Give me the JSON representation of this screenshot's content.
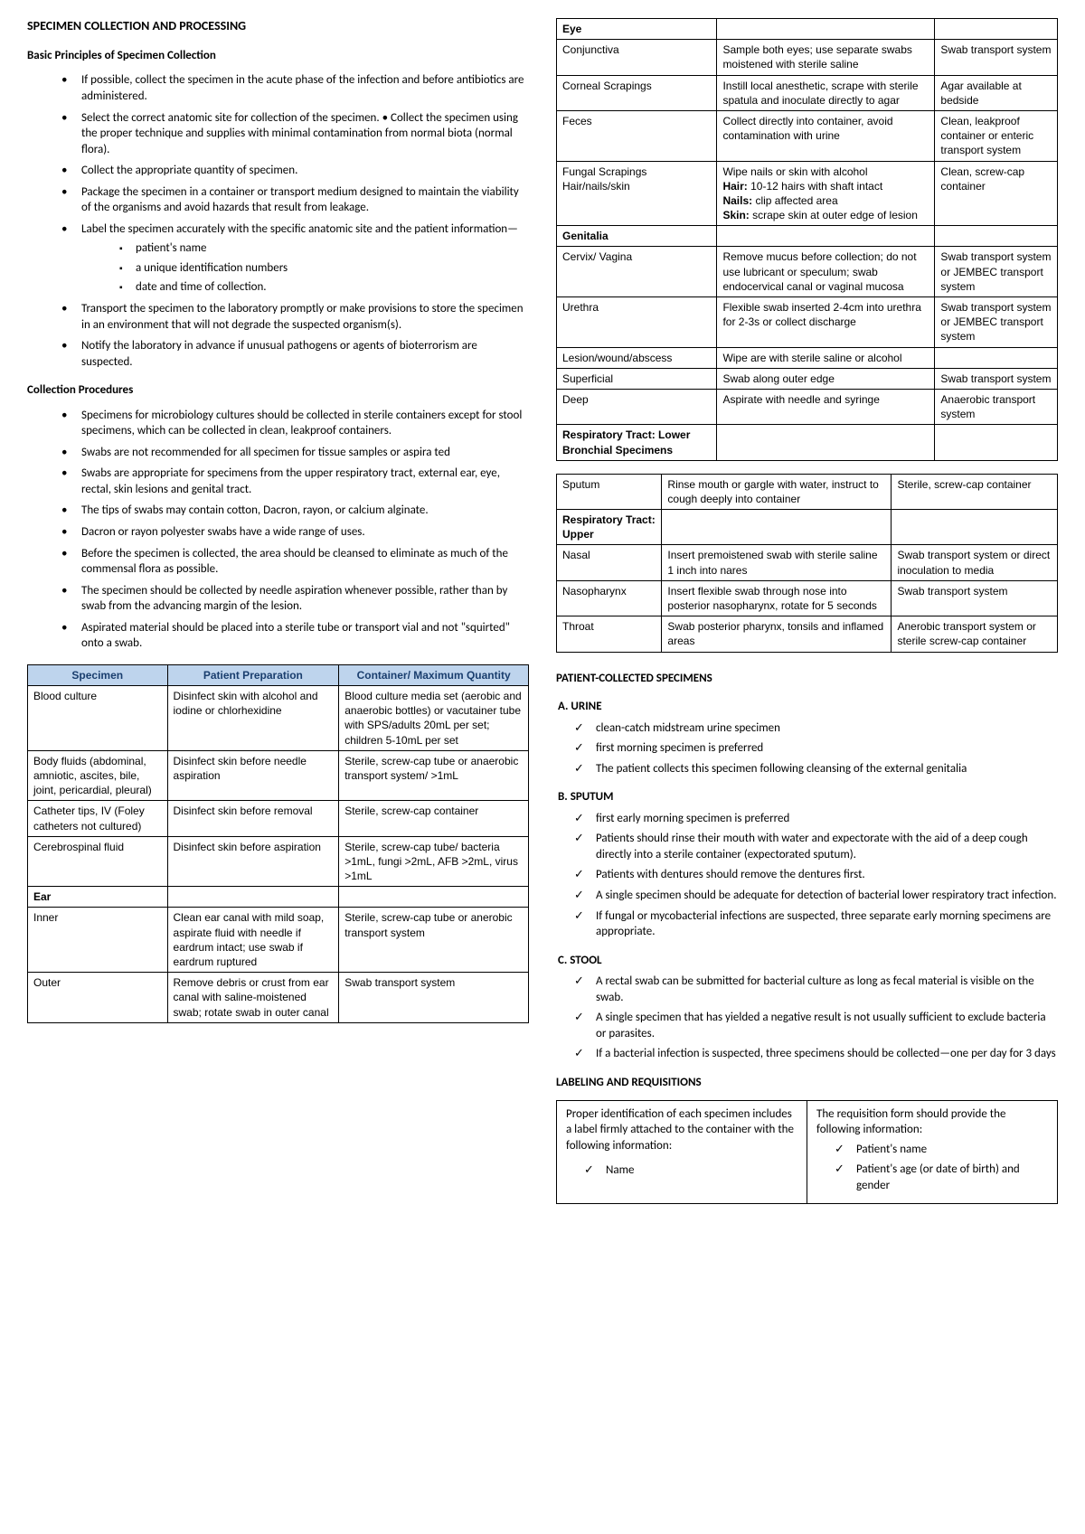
{
  "title": "SPECIMEN COLLECTION AND PROCESSING",
  "basic_principles": {
    "heading": "Basic Principles of Specimen Collection",
    "items": [
      "If possible, collect the specimen in the acute phase of the infection and before antibiotics are administered.",
      "Select the correct anatomic site for collection of the specimen. • Collect the specimen using the proper technique and supplies with minimal contamination from normal biota (normal flora).",
      "Collect the appropriate quantity of specimen.",
      "Package the specimen in a container or transport medium designed to maintain the viability of the organisms and avoid hazards that result from leakage.",
      "Label the specimen accurately with the specific anatomic site and the patient information—",
      "Transport the specimen to the laboratory promptly or make provisions to store the specimen in an environment that will not degrade the suspected organism(s).",
      "Notify the laboratory in advance if unusual pathogens or agents of bioterrorism are suspected."
    ],
    "sub_items": [
      "patient's name",
      "a unique identification numbers",
      "date and time of collection."
    ]
  },
  "collection_procedures": {
    "heading": "Collection Procedures",
    "items": [
      "Specimens for microbiology cultures should be collected in sterile containers except for stool specimens, which can be collected in clean, leakproof containers.",
      "Swabs are not recommended for all specimen for tissue samples or aspira ted",
      "Swabs are appropriate for specimens from the upper respiratory tract, external ear, eye, rectal, skin lesions and genital tract.",
      "The tips of swabs may contain cotton, Dacron, rayon, or calcium alginate.",
      "Dacron or rayon polyester swabs have a wide range of uses.",
      "Before the specimen is collected, the area should be cleansed to eliminate as much of the commensal flora as possible.",
      "The specimen should be collected by needle aspiration whenever possible, rather than by swab from the advancing margin of the lesion.",
      "Aspirated material should be placed into a sterile tube or transport vial and not \"squirted\" onto a swab."
    ]
  },
  "table1": {
    "headers": [
      "Specimen",
      "Patient Preparation",
      "Container/ Maximum Quantity"
    ],
    "rows": [
      {
        "type": "data",
        "c": [
          "Blood culture",
          "Disinfect skin with alcohol and iodine or chlorhexidine",
          "Blood culture media set (aerobic and anaerobic bottles) or vacutainer tube with SPS/adults 20mL per set; children 5-10mL per set"
        ]
      },
      {
        "type": "data",
        "c": [
          "Body fluids (abdominal, amniotic, ascites, bile, joint, pericardial, pleural)",
          "Disinfect skin before needle aspiration",
          "Sterile, screw-cap tube or anaerobic transport system/ >1mL"
        ]
      },
      {
        "type": "data",
        "c": [
          "Catheter tips, IV (Foley catheters not cultured)",
          "Disinfect skin before removal",
          "Sterile, screw-cap container"
        ]
      },
      {
        "type": "data",
        "c": [
          "Cerebrospinal fluid",
          "Disinfect skin before aspiration",
          "Sterile, screw-cap tube/ bacteria >1mL, fungi >2mL, AFB >2mL, virus >1mL"
        ]
      },
      {
        "type": "section",
        "c": [
          "Ear",
          "",
          ""
        ]
      },
      {
        "type": "data",
        "c": [
          "Inner",
          "Clean ear canal with mild soap, aspirate fluid with needle if eardrum intact; use swab if eardrum ruptured",
          "Sterile, screw-cap tube or anerobic transport system"
        ],
        "indent": true
      },
      {
        "type": "data",
        "c": [
          "Outer",
          "Remove debris or crust from ear canal with saline-moistened swab; rotate swab in outer canal",
          "Swab transport system"
        ],
        "indent": true
      }
    ]
  },
  "table2": {
    "rows": [
      {
        "type": "section",
        "c": [
          "Eye",
          "",
          ""
        ]
      },
      {
        "type": "data",
        "c": [
          "Conjunctiva",
          "Sample both eyes; use separate swabs moistened with sterile saline",
          "Swab transport system"
        ],
        "indent": true
      },
      {
        "type": "data",
        "c": [
          "Corneal Scrapings",
          "Instill local anesthetic, scrape with sterile spatula and inoculate directly to agar",
          "Agar available at bedside"
        ],
        "indent": true
      },
      {
        "type": "data",
        "c": [
          "Feces",
          "Collect directly into container, avoid contamination with urine",
          "Clean, leakproof container or enteric transport system"
        ]
      },
      {
        "type": "data_html",
        "c": [
          "Fungal Scrapings Hair/nails/skin",
          "Wipe nails or skin with alcohol<br><b>Hair:</b> 10-12 hairs with shaft intact<br><b>Nails:</b> clip affected area<br><b>Skin:</b> scrape skin at outer edge of lesion",
          "Clean, screw-cap container"
        ],
        "indent": true
      },
      {
        "type": "section",
        "c": [
          "Genitalia",
          "",
          ""
        ]
      },
      {
        "type": "data",
        "c": [
          "Cervix/ Vagina",
          "Remove mucus before collection; do not use lubricant or speculum; swab endocervical canal or vaginal mucosa",
          "Swab transport system or JEMBEC transport system"
        ],
        "indent": true
      },
      {
        "type": "data",
        "c": [
          "Urethra",
          "Flexible swab inserted 2-4cm into urethra for 2-3s or collect discharge",
          "Swab transport system or JEMBEC transport system"
        ],
        "indent": true
      },
      {
        "type": "data",
        "c": [
          "Lesion/wound/abscess",
          "Wipe are with sterile saline or alcohol",
          ""
        ]
      },
      {
        "type": "data",
        "c": [
          "Superficial",
          "Swab along outer edge",
          "Swab transport system"
        ],
        "indent": true
      },
      {
        "type": "data",
        "c": [
          "Deep",
          "Aspirate with needle and syringe",
          "Anaerobic transport system"
        ],
        "indent": true
      },
      {
        "type": "section",
        "c": [
          "Respiratory Tract: Lower Bronchial Specimens",
          "",
          ""
        ]
      }
    ]
  },
  "table3": {
    "rows": [
      {
        "type": "data",
        "c": [
          "Sputum",
          "Rinse mouth or gargle with water, instruct to cough deeply into container",
          "Sterile, screw-cap container"
        ],
        "indent": true
      },
      {
        "type": "section",
        "c": [
          "Respiratory Tract: Upper",
          "",
          ""
        ]
      },
      {
        "type": "data",
        "c": [
          "Nasal",
          "Insert premoistened swab with sterile saline 1 inch into nares",
          "Swab transport system or direct inoculation to media"
        ],
        "indent": true
      },
      {
        "type": "data",
        "c": [
          "Nasopharynx",
          "Insert flexible swab through nose into posterior nasopharynx, rotate for 5 seconds",
          "Swab transport system"
        ],
        "indent": true
      },
      {
        "type": "data",
        "c": [
          "Throat",
          "Swab posterior pharynx, tonsils and inflamed areas",
          "Anerobic transport system or sterile screw-cap container"
        ],
        "indent": true
      }
    ]
  },
  "patient_collected": {
    "heading": "PATIENT-COLLECTED SPECIMENS",
    "urine": {
      "label": "A.    URINE",
      "items": [
        "clean-catch midstream urine specimen",
        "first morning specimen is preferred",
        "The patient collects this specimen following cleansing of the external genitalia"
      ]
    },
    "sputum": {
      "label": "B.    SPUTUM",
      "items": [
        "first early morning specimen is preferred",
        "Patients should rinse their mouth with water and expectorate with the aid of a deep cough directly into a sterile container (expectorated sputum).",
        "Patients with dentures should remove the dentures first.",
        "A single specimen should be adequate for detection of bacterial lower respiratory tract infection.",
        "If fungal or mycobacterial infections are suspected, three separate early morning specimens are appropriate."
      ]
    },
    "stool": {
      "label": "C.    STOOL",
      "items": [
        "A rectal swab can be submitted for bacterial culture as long as fecal material is visible on the swab.",
        "A single specimen that has yielded a negative result is not usually sufficient to exclude bacteria or parasites.",
        "If a bacterial infection is suspected, three specimens should be collected—one per day for 3 days"
      ]
    }
  },
  "labeling": {
    "heading": "LABELING AND REQUISITIONS",
    "left_text": "Proper identification of each specimen includes a label firmly attached to the container with the following information:",
    "left_items": [
      "Name"
    ],
    "right_text": "The requisition form should provide the following information:",
    "right_items": [
      "Patient's name",
      "Patient's age (or date of birth) and gender"
    ]
  },
  "colors": {
    "table_header_bg": "#bed4ed",
    "table_header_fg": "#1a3e6e"
  }
}
